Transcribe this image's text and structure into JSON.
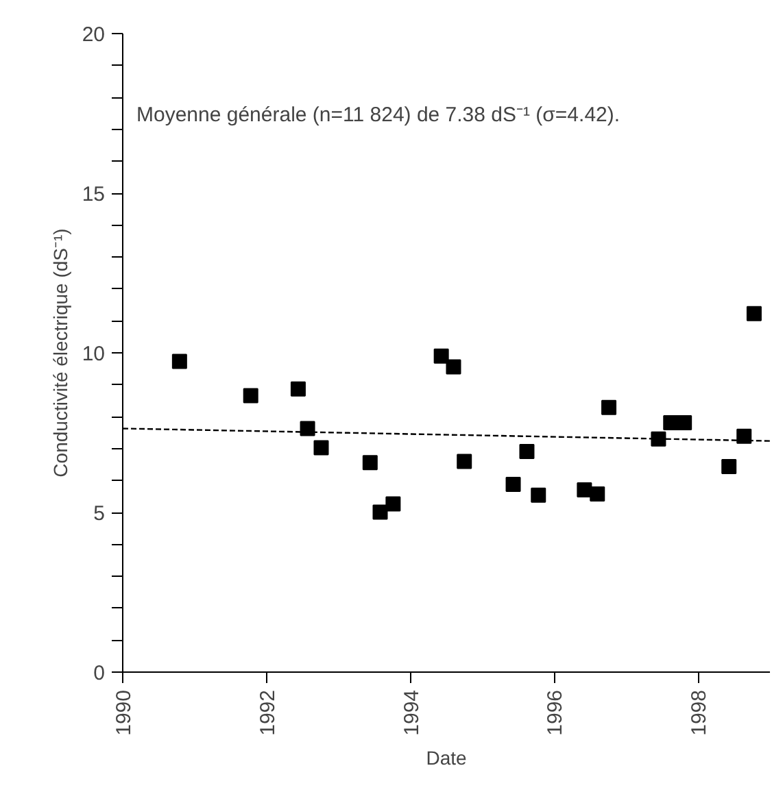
{
  "chart_data": {
    "type": "scatter",
    "xlabel": "Date",
    "ylabel": "Conductivité électrique (dS⁻¹)",
    "annotations": [
      "Moyenne générale (n=11 824) de 7.38 dS⁻¹ (σ=4.42)."
    ],
    "xlim": [
      1990,
      1999
    ],
    "xticks": [
      1990,
      1992,
      1994,
      1996,
      1998
    ],
    "ylim": [
      0,
      20
    ],
    "yticks": [
      0,
      {
        "value": 1,
        "label": null
      },
      {
        "value": 2,
        "label": null
      },
      {
        "value": 3,
        "label": null
      },
      {
        "value": 4,
        "label": null
      },
      5,
      {
        "value": 6,
        "label": null
      },
      {
        "value": 7,
        "label": null
      },
      {
        "value": 8,
        "label": null
      },
      {
        "value": 9,
        "label": null
      },
      10,
      {
        "value": 11,
        "label": null
      },
      {
        "value": 12,
        "label": null
      },
      {
        "value": 13,
        "label": null
      },
      {
        "value": 14,
        "label": null
      },
      15,
      {
        "value": 16,
        "label": null
      },
      {
        "value": 17,
        "label": null
      },
      {
        "value": 18,
        "label": null
      },
      {
        "value": 19,
        "label": null
      },
      20
    ],
    "marker": "square",
    "grid": false,
    "series": [
      {
        "color": "#000000",
        "x": [
          1990.79,
          1991.78,
          1992.44,
          1992.57,
          1992.76,
          1993.44,
          1993.58,
          1993.76,
          1994.43,
          1994.6,
          1994.75,
          1995.43,
          1995.62,
          1995.78,
          1996.42,
          1996.6,
          1996.76,
          1997.45,
          1997.62,
          1997.81,
          1998.43,
          1998.64,
          1998.78
        ],
        "values": [
          9.73,
          8.66,
          8.87,
          7.63,
          7.03,
          6.56,
          5.01,
          5.27,
          9.9,
          9.56,
          6.6,
          5.88,
          6.91,
          5.54,
          5.71,
          5.58,
          8.29,
          7.3,
          7.81,
          7.81,
          6.44,
          7.39,
          11.23
        ]
      },
      {
        "type": "line",
        "line_style": "dashed",
        "marker": "none",
        "color": "#000000",
        "x": [
          1990,
          1999
        ],
        "values": [
          7.63,
          7.24
        ]
      }
    ]
  }
}
